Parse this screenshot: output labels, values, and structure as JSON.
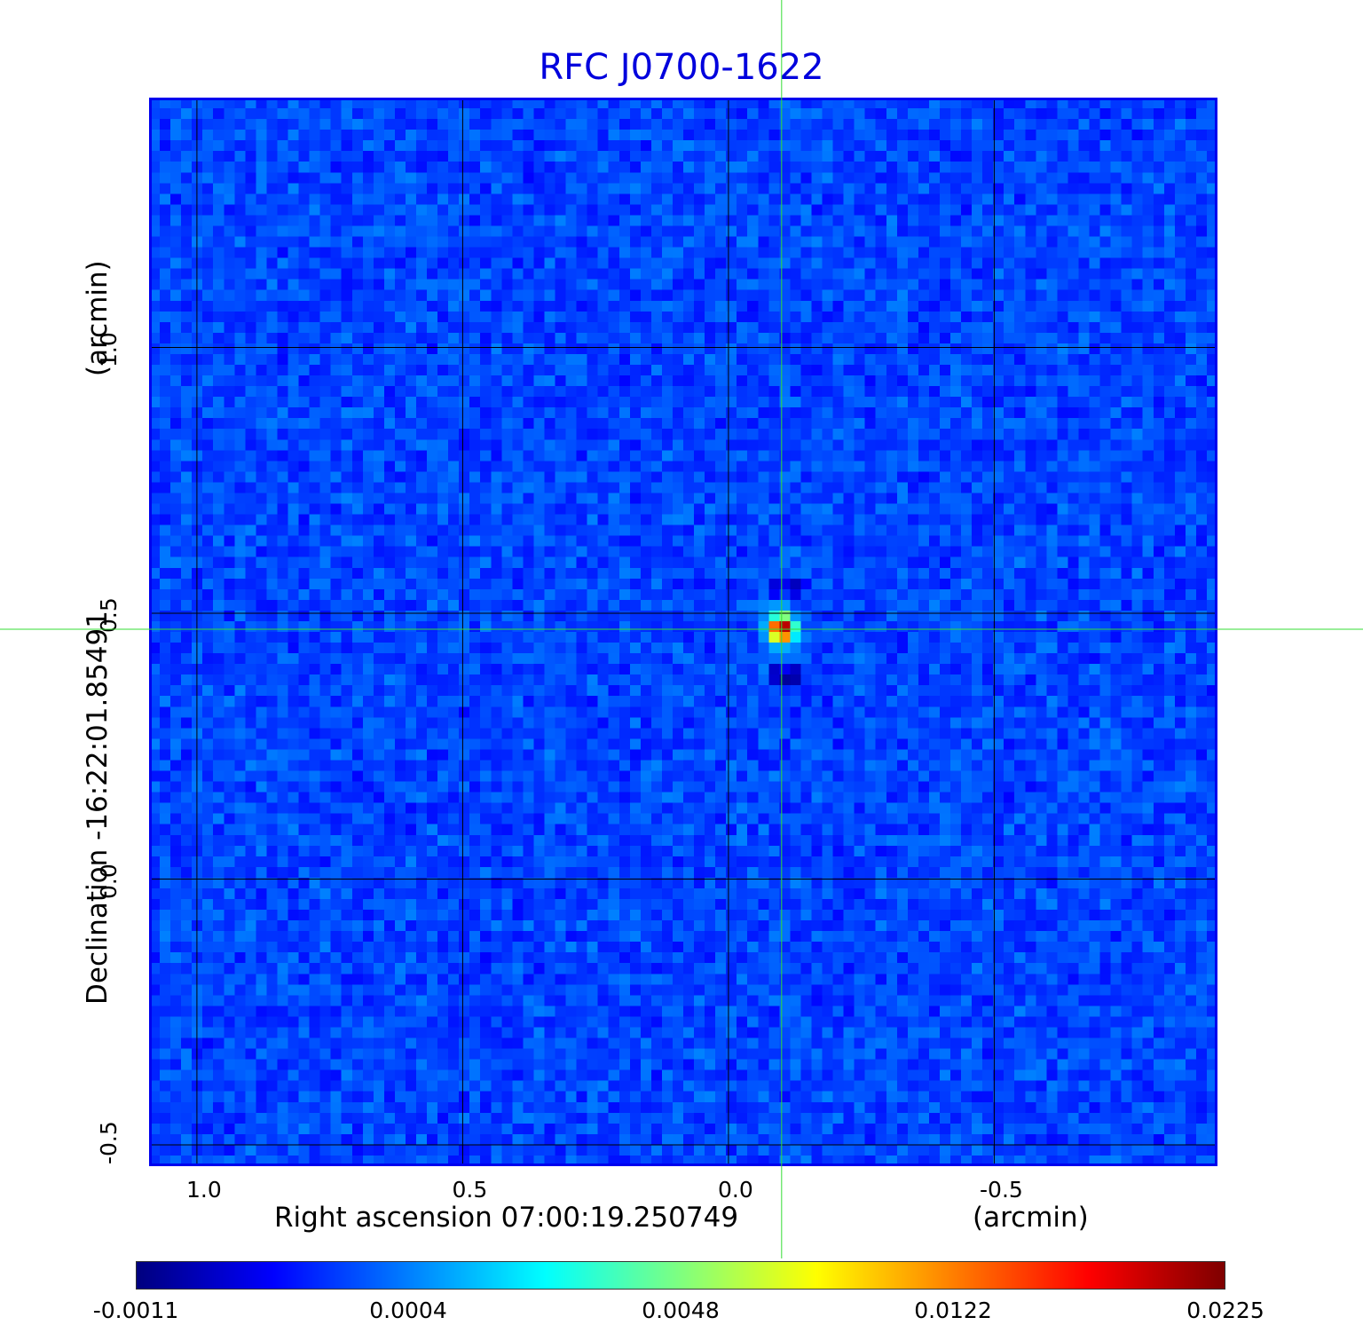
{
  "chart_data": {
    "type": "heatmap",
    "title": "RFC J0700-1622",
    "xlabel": "Right ascension  07:00:19.250749",
    "xunit": "(arcmin)",
    "ylabel": "Declination  -16:22:01.85491",
    "yunit": "(arcmin)",
    "x_ticks": [
      "1.0",
      "0.5",
      "0.0",
      "-0.5"
    ],
    "x_tick_values": [
      1.0,
      0.5,
      0.0,
      -0.5
    ],
    "y_ticks": [
      "1.0",
      "0.5",
      "0.0",
      "-0.5"
    ],
    "y_tick_values": [
      1.0,
      0.5,
      0.0,
      -0.5
    ],
    "xlim": [
      1.09,
      -0.92
    ],
    "ylim": [
      -0.54,
      1.47
    ],
    "grid": true,
    "colormap": "jet",
    "colorbar_ticks": [
      "-0.0011",
      "0.0004",
      "0.0048",
      "0.0122",
      "0.0225"
    ],
    "colorbar_range": [
      -0.0011,
      0.0225
    ],
    "source_position": {
      "x": -0.1,
      "y": 0.47
    },
    "source_peak": 0.0225,
    "crosshair": {
      "x": -0.1,
      "y": 0.47
    },
    "colors": {
      "title": "#0000dd",
      "frame": "#0000ee",
      "crosshair": "#33dd33",
      "grid": "#000000"
    }
  }
}
